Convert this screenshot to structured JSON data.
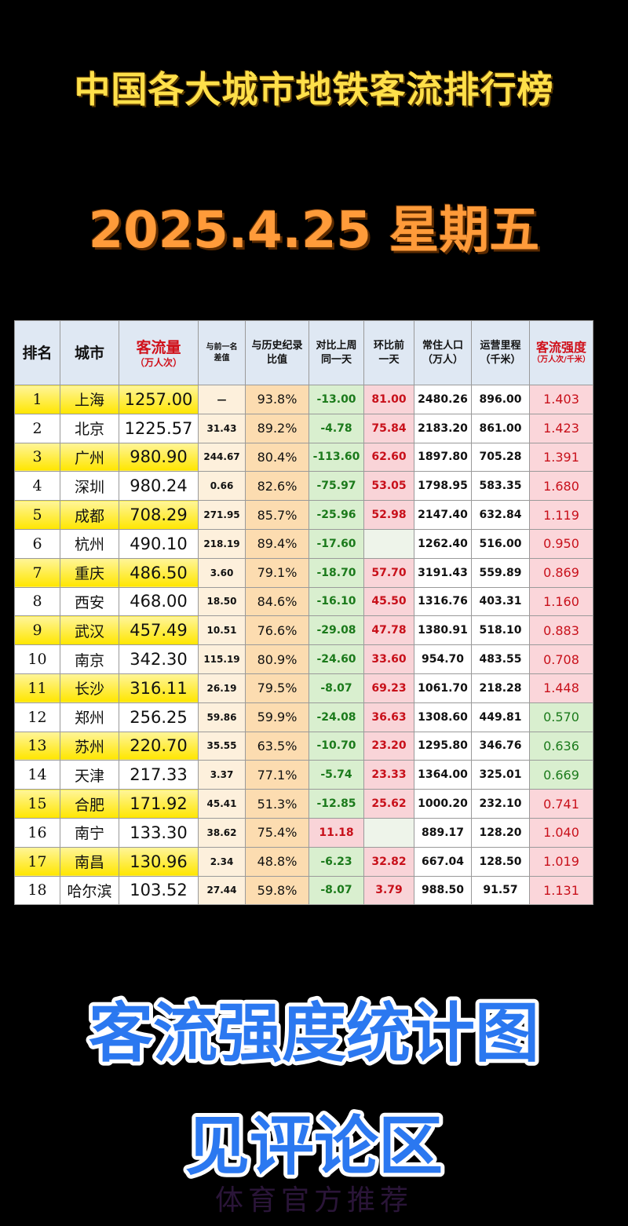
{
  "header": {
    "title": "中国各大城市地铁客流排行榜",
    "date": "2025.4.25 星期五"
  },
  "table": {
    "headers": [
      [
        "排名"
      ],
      [
        "城市"
      ],
      [
        "客流量",
        "（万人次）"
      ],
      [
        "与前一名",
        "差值"
      ],
      [
        "与历史纪录",
        "比值"
      ],
      [
        "对比上周",
        "同一天"
      ],
      [
        "环比前",
        "一天"
      ],
      [
        "常住人口",
        "（万人）"
      ],
      [
        "运营里程",
        "（千米）"
      ],
      [
        "客流强度",
        "（万人次/千米）"
      ]
    ],
    "rows": [
      [
        "1",
        "上海",
        "1257.00",
        "—",
        "93.8%",
        "-13.00",
        "81.00",
        "2480.26",
        "896.00",
        "1.403"
      ],
      [
        "2",
        "北京",
        "1225.57",
        "31.43",
        "89.2%",
        "-4.78",
        "75.84",
        "2183.20",
        "861.00",
        "1.423"
      ],
      [
        "3",
        "广州",
        "980.90",
        "244.67",
        "80.4%",
        "-113.60",
        "62.60",
        "1897.80",
        "705.28",
        "1.391"
      ],
      [
        "4",
        "深圳",
        "980.24",
        "0.66",
        "82.6%",
        "-75.97",
        "53.05",
        "1798.95",
        "583.35",
        "1.680"
      ],
      [
        "5",
        "成都",
        "708.29",
        "271.95",
        "85.7%",
        "-25.96",
        "52.98",
        "2147.40",
        "632.84",
        "1.119"
      ],
      [
        "6",
        "杭州",
        "490.10",
        "218.19",
        "89.4%",
        "-17.60",
        null,
        "1262.40",
        "516.00",
        "0.950"
      ],
      [
        "7",
        "重庆",
        "486.50",
        "3.60",
        "79.1%",
        "-18.70",
        "57.70",
        "3191.43",
        "559.89",
        "0.869"
      ],
      [
        "8",
        "西安",
        "468.00",
        "18.50",
        "84.6%",
        "-16.10",
        "45.50",
        "1316.76",
        "403.31",
        "1.160"
      ],
      [
        "9",
        "武汉",
        "457.49",
        "10.51",
        "76.6%",
        "-29.08",
        "47.78",
        "1380.91",
        "518.10",
        "0.883"
      ],
      [
        "10",
        "南京",
        "342.30",
        "115.19",
        "80.9%",
        "-24.60",
        "33.60",
        "954.70",
        "483.55",
        "0.708"
      ],
      [
        "11",
        "长沙",
        "316.11",
        "26.19",
        "79.5%",
        "-8.07",
        "69.23",
        "1061.70",
        "218.28",
        "1.448"
      ],
      [
        "12",
        "郑州",
        "256.25",
        "59.86",
        "59.9%",
        "-24.08",
        "36.63",
        "1308.60",
        "449.81",
        "0.570"
      ],
      [
        "13",
        "苏州",
        "220.70",
        "35.55",
        "63.5%",
        "-10.70",
        "23.20",
        "1295.80",
        "346.76",
        "0.636"
      ],
      [
        "14",
        "天津",
        "217.33",
        "3.37",
        "77.1%",
        "-5.74",
        "23.33",
        "1364.00",
        "325.01",
        "0.669"
      ],
      [
        "15",
        "合肥",
        "171.92",
        "45.41",
        "51.3%",
        "-12.85",
        "25.62",
        "1000.20",
        "232.10",
        "0.741"
      ],
      [
        "16",
        "南宁",
        "133.30",
        "38.62",
        "75.4%",
        "11.18",
        null,
        "889.17",
        "128.20",
        "1.040"
      ],
      [
        "17",
        "南昌",
        "130.96",
        "2.34",
        "48.8%",
        "-6.23",
        "32.82",
        "667.04",
        "128.50",
        "1.019"
      ],
      [
        "18",
        "哈尔滨",
        "103.52",
        "27.44",
        "59.8%",
        "-8.07",
        "3.79",
        "988.50",
        "91.57",
        "1.131"
      ]
    ]
  },
  "footer": {
    "banner": "客流强度统计图",
    "note": "见评论区",
    "watermark": "体育官方推荐"
  }
}
